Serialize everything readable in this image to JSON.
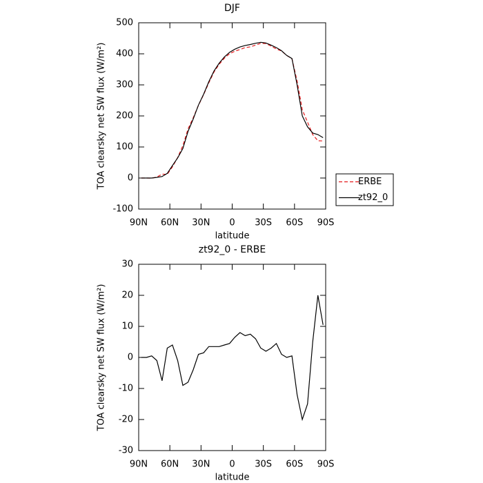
{
  "chart_data": [
    {
      "type": "line",
      "title": "DJF",
      "xlabel": "latitude",
      "ylabel": "TOA clearsky net SW flux (W/m²)",
      "x": [
        87.5,
        82.5,
        77.5,
        72.5,
        67.5,
        62.5,
        57.5,
        52.5,
        47.5,
        42.5,
        37.5,
        32.5,
        27.5,
        22.5,
        17.5,
        12.5,
        7.5,
        2.5,
        -2.5,
        -7.5,
        -12.5,
        -17.5,
        -22.5,
        -27.5,
        -32.5,
        -37.5,
        -42.5,
        -47.5,
        -52.5,
        -57.5,
        -62.5,
        -67.5,
        -72.5,
        -77.5,
        -82.5,
        -87.5
      ],
      "series": [
        {
          "name": "ERBE",
          "color": "#e41a1c",
          "dashed": true,
          "values": [
            0,
            0,
            -0.5,
            3,
            12.5,
            12,
            36,
            66,
            104,
            158,
            194,
            234,
            268.5,
            306.5,
            341.5,
            366.5,
            386,
            400.5,
            408.5,
            414,
            420,
            422.5,
            428,
            434,
            433,
            425,
            415.5,
            409,
            395,
            384.5,
            312,
            220,
            180,
            140,
            120,
            119.5
          ]
        },
        {
          "name": "zt92_0",
          "color": "#000000",
          "dashed": false,
          "values": [
            0,
            0,
            0,
            2,
            5,
            15,
            40,
            65,
            95,
            150,
            190,
            235,
            270,
            310,
            345,
            370,
            390,
            405,
            415,
            422,
            427,
            430,
            434,
            437,
            435,
            428,
            420,
            410,
            395,
            385,
            300,
            200,
            165,
            145,
            140,
            130
          ]
        }
      ],
      "xlim": [
        90,
        -90
      ],
      "xticks": [
        {
          "value": 90,
          "label": "90N"
        },
        {
          "value": 60,
          "label": "60N"
        },
        {
          "value": 30,
          "label": "30N"
        },
        0,
        {
          "value": -30,
          "label": "30S"
        },
        {
          "value": -60,
          "label": "60S"
        },
        {
          "value": -90,
          "label": "90S"
        }
      ],
      "ylim": [
        -100,
        500
      ],
      "yticks": [
        -100,
        0,
        100,
        200,
        300,
        400,
        500
      ],
      "legend": "right"
    },
    {
      "type": "line",
      "title": "zt92_0 - ERBE",
      "xlabel": "latitude",
      "ylabel": "TOA clearsky net SW flux (W/m²)",
      "x": [
        87.5,
        82.5,
        77.5,
        72.5,
        67.5,
        62.5,
        57.5,
        52.5,
        47.5,
        42.5,
        37.5,
        32.5,
        27.5,
        22.5,
        17.5,
        12.5,
        7.5,
        2.5,
        -2.5,
        -7.5,
        -12.5,
        -17.5,
        -22.5,
        -27.5,
        -32.5,
        -37.5,
        -42.5,
        -47.5,
        -52.5,
        -57.5,
        -62.5,
        -67.5,
        -72.5,
        -77.5,
        -82.5,
        -87.5
      ],
      "series": [
        {
          "color": "#000000",
          "dashed": false,
          "values": [
            0,
            0,
            0.5,
            -1,
            -7.5,
            3,
            4,
            -1,
            -9,
            -8,
            -4,
            1,
            1.5,
            3.5,
            3.5,
            3.5,
            4,
            4.5,
            6.5,
            8,
            7,
            7.5,
            6,
            3,
            2,
            3,
            4.5,
            1,
            0,
            0.5,
            -12,
            -20,
            -15,
            5,
            20,
            10.5
          ]
        }
      ],
      "xlim": [
        90,
        -90
      ],
      "xticks": [
        {
          "value": 90,
          "label": "90N"
        },
        {
          "value": 60,
          "label": "60N"
        },
        {
          "value": 30,
          "label": "30N"
        },
        0,
        {
          "value": -30,
          "label": "30S"
        },
        {
          "value": -60,
          "label": "60S"
        },
        {
          "value": -90,
          "label": "90S"
        }
      ],
      "ylim": [
        -30,
        30
      ],
      "yticks": [
        -30,
        -20,
        -10,
        0,
        10,
        20,
        30
      ]
    }
  ]
}
